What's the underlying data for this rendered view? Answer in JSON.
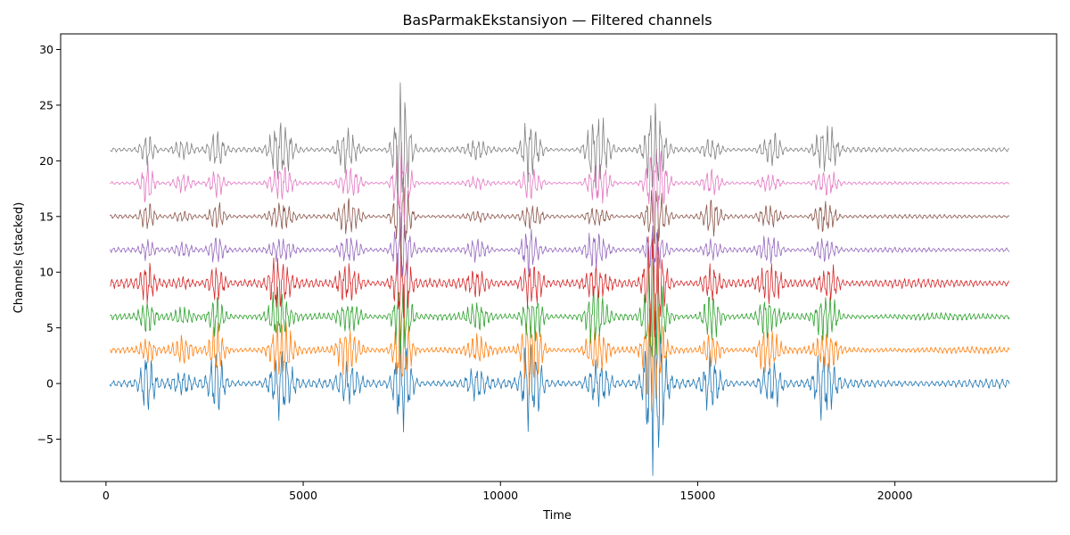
{
  "chart_data": {
    "type": "line",
    "title": "BasParmakEkstansiyon — Filtered channels",
    "xlabel": "Time",
    "ylabel": "Channels (stacked)",
    "xlim": [
      -1150,
      24100
    ],
    "ylim": [
      -8.8,
      31.4
    ],
    "x_range": [
      100,
      22900
    ],
    "xticks": [
      0,
      5000,
      10000,
      15000,
      20000
    ],
    "xtick_labels": [
      "0",
      "5000",
      "10000",
      "15000",
      "20000"
    ],
    "yticks": [
      -5,
      0,
      5,
      10,
      15,
      20,
      25,
      30
    ],
    "ytick_labels": [
      "−5",
      "0",
      "5",
      "10",
      "15",
      "20",
      "25",
      "30"
    ],
    "grid": false,
    "legend": "none",
    "colors": [
      "#1f77b4",
      "#ff7f0e",
      "#2ca02c",
      "#d62728",
      "#9467bd",
      "#8c564b",
      "#e377c2",
      "#7f7f7f"
    ],
    "series": [
      {
        "offset": 0,
        "base_amp": 0.45,
        "peak_scale": 1.0
      },
      {
        "offset": 3,
        "base_amp": 0.35,
        "peak_scale": 0.8
      },
      {
        "offset": 6,
        "base_amp": 0.35,
        "peak_scale": 0.7
      },
      {
        "offset": 9,
        "base_amp": 0.45,
        "peak_scale": 0.6
      },
      {
        "offset": 12,
        "base_amp": 0.25,
        "peak_scale": 0.55
      },
      {
        "offset": 15,
        "base_amp": 0.2,
        "peak_scale": 0.55
      },
      {
        "offset": 18,
        "base_amp": 0.15,
        "peak_scale": 0.6
      },
      {
        "offset": 21,
        "base_amp": 0.25,
        "peak_scale": 0.8
      }
    ],
    "bursts": [
      {
        "center": 1050,
        "width": 180,
        "amp": 2.5
      },
      {
        "center": 1950,
        "width": 250,
        "amp": 1.2
      },
      {
        "center": 2800,
        "width": 200,
        "amp": 2.6
      },
      {
        "center": 4350,
        "width": 220,
        "amp": 3.2
      },
      {
        "center": 4600,
        "width": 200,
        "amp": 1.5
      },
      {
        "center": 6050,
        "width": 200,
        "amp": 2.0
      },
      {
        "center": 6300,
        "width": 200,
        "amp": 1.5
      },
      {
        "center": 7450,
        "width": 180,
        "amp": 5.5
      },
      {
        "center": 7600,
        "width": 180,
        "amp": 4.0
      },
      {
        "center": 9400,
        "width": 260,
        "amp": 1.4
      },
      {
        "center": 10700,
        "width": 180,
        "amp": 3.2
      },
      {
        "center": 10950,
        "width": 160,
        "amp": 1.8
      },
      {
        "center": 12350,
        "width": 200,
        "amp": 2.8
      },
      {
        "center": 12600,
        "width": 200,
        "amp": 2.0
      },
      {
        "center": 13850,
        "width": 200,
        "amp": 6.5
      },
      {
        "center": 14050,
        "width": 220,
        "amp": 3.0
      },
      {
        "center": 15350,
        "width": 220,
        "amp": 2.5
      },
      {
        "center": 16700,
        "width": 180,
        "amp": 2.0
      },
      {
        "center": 16950,
        "width": 180,
        "amp": 1.6
      },
      {
        "center": 18150,
        "width": 200,
        "amp": 2.2
      },
      {
        "center": 18400,
        "width": 180,
        "amp": 1.8
      }
    ]
  }
}
